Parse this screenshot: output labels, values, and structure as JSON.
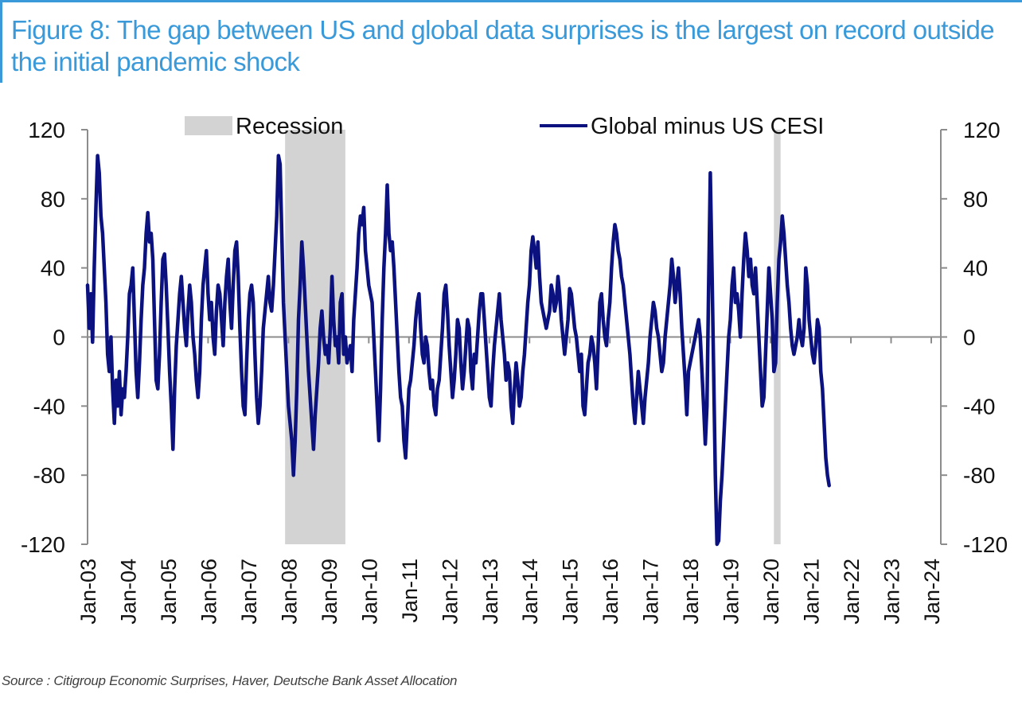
{
  "figure": {
    "title": "Figure 8: The gap between US and global data surprises is the largest on record outside the initial pandemic shock",
    "source": "Source : Citigroup Economic Surprises, Haver, Deutsche Bank Asset Allocation"
  },
  "colors": {
    "title": "#3a9ad9",
    "series": "#0b1280",
    "recession": "#d3d3d3",
    "axis": "#8c8c8c"
  },
  "chart_data": {
    "type": "line",
    "title": "Figure 8: The gap between US and global data surprises is the largest on record outside the initial pandemic shock",
    "xlabel": "",
    "ylabel": "",
    "ylim": [
      -120,
      120
    ],
    "yticks": [
      -120,
      -80,
      -40,
      0,
      40,
      80,
      120
    ],
    "ytick_labels": [
      "-120",
      "-80",
      "-40",
      "0",
      "40",
      "80",
      "120"
    ],
    "y2ticks": [
      -120,
      -80,
      -40,
      0,
      40,
      80,
      120
    ],
    "y2tick_labels": [
      "-120",
      "-80",
      "-40",
      "0",
      "40",
      "80",
      "120"
    ],
    "xlim": [
      "2003-01",
      "2024-01"
    ],
    "xtick_labels": [
      "Jan-03",
      "Jan-04",
      "Jan-05",
      "Jan-06",
      "Jan-07",
      "Jan-08",
      "Jan-09",
      "Jan-10",
      "Jan-11",
      "Jan-12",
      "Jan-13",
      "Jan-14",
      "Jan-15",
      "Jan-16",
      "Jan-17",
      "Jan-18",
      "Jan-19",
      "Jan-20",
      "Jan-21",
      "Jan-22",
      "Jan-23",
      "Jan-24"
    ],
    "grid": false,
    "legend": {
      "placement": "top",
      "entries": [
        {
          "name": "Recession",
          "kind": "area"
        },
        {
          "name": "Global minus US CESI",
          "kind": "line"
        }
      ]
    },
    "recessions": [
      {
        "start": "2007-12",
        "end": "2009-06"
      },
      {
        "start": "2020-02",
        "end": "2020-04"
      }
    ],
    "series": [
      {
        "name": "Global minus US CESI",
        "start": "2003-01",
        "frequency": "half-month",
        "values": [
          30,
          5,
          25,
          -3,
          40,
          75,
          105,
          95,
          70,
          60,
          40,
          20,
          -10,
          -20,
          0,
          -30,
          -50,
          -25,
          -40,
          -20,
          -45,
          -30,
          -35,
          -20,
          0,
          25,
          30,
          40,
          10,
          -20,
          -35,
          -15,
          10,
          30,
          40,
          60,
          72,
          55,
          60,
          45,
          10,
          -25,
          -30,
          -10,
          20,
          45,
          48,
          30,
          5,
          -20,
          -40,
          -65,
          -30,
          -5,
          10,
          25,
          35,
          20,
          5,
          -5,
          15,
          30,
          20,
          0,
          -10,
          -25,
          -35,
          -20,
          10,
          30,
          40,
          50,
          25,
          10,
          20,
          0,
          -10,
          15,
          30,
          25,
          10,
          -5,
          20,
          35,
          45,
          20,
          5,
          30,
          50,
          55,
          35,
          5,
          -20,
          -40,
          -45,
          -15,
          10,
          25,
          30,
          20,
          -10,
          -35,
          -50,
          -40,
          -20,
          5,
          15,
          25,
          35,
          20,
          15,
          30,
          50,
          70,
          105,
          100,
          60,
          20,
          0,
          -20,
          -40,
          -50,
          -60,
          -80,
          -60,
          -30,
          10,
          30,
          55,
          40,
          20,
          0,
          -20,
          -35,
          -50,
          -65,
          -45,
          -30,
          -15,
          5,
          15,
          0,
          -10,
          -5,
          -15,
          5,
          35,
          10,
          -5,
          0,
          -15,
          20,
          25,
          -10,
          0,
          -15,
          -10,
          -5,
          -20,
          10,
          25,
          40,
          60,
          70,
          65,
          75,
          50,
          40,
          30,
          25,
          20,
          0,
          -20,
          -40,
          -60,
          -30,
          10,
          40,
          60,
          88,
          60,
          50,
          55,
          40,
          20,
          0,
          -20,
          -35,
          -40,
          -60,
          -70,
          -50,
          -30,
          -25,
          -15,
          -5,
          10,
          20,
          25,
          5,
          -10,
          -15,
          0,
          -5,
          -20,
          -30,
          -25,
          -40,
          -45,
          -30,
          -25,
          -10,
          5,
          25,
          30,
          15,
          -5,
          -20,
          -35,
          -25,
          -10,
          10,
          5,
          -15,
          -30,
          -20,
          -5,
          10,
          5,
          -20,
          -30,
          -10,
          -15,
          0,
          15,
          25,
          25,
          10,
          -5,
          -20,
          -35,
          -40,
          -20,
          -5,
          5,
          15,
          25,
          10,
          0,
          -10,
          -25,
          -15,
          -20,
          -40,
          -50,
          -30,
          -15,
          -25,
          -40,
          -35,
          -20,
          -10,
          5,
          20,
          30,
          50,
          58,
          50,
          40,
          55,
          35,
          20,
          15,
          10,
          5,
          10,
          15,
          30,
          25,
          15,
          20,
          35,
          25,
          10,
          0,
          -10,
          0,
          10,
          28,
          25,
          15,
          5,
          0,
          -10,
          -20,
          -10,
          -40,
          -45,
          -30,
          -15,
          -10,
          0,
          -5,
          -15,
          -30,
          -5,
          20,
          25,
          10,
          0,
          -5,
          10,
          20,
          40,
          55,
          65,
          60,
          50,
          45,
          35,
          30,
          20,
          10,
          0,
          -10,
          -25,
          -40,
          -50,
          -35,
          -20,
          -30,
          -40,
          -50,
          -35,
          -25,
          -15,
          0,
          10,
          20,
          15,
          5,
          0,
          -10,
          -20,
          -15,
          0,
          10,
          20,
          30,
          45,
          35,
          20,
          30,
          40,
          25,
          5,
          -10,
          -25,
          -45,
          -20,
          -15,
          -10,
          -5,
          0,
          5,
          10,
          0,
          -20,
          -40,
          -62,
          -40,
          30,
          95,
          40,
          -20,
          -80,
          -120,
          -118,
          -95,
          -80,
          -60,
          -40,
          -20,
          0,
          10,
          30,
          40,
          20,
          25,
          15,
          0,
          25,
          45,
          60,
          50,
          35,
          45,
          30,
          25,
          40,
          20,
          0,
          -20,
          -40,
          -35,
          -10,
          15,
          40,
          25,
          10,
          -20,
          -15,
          20,
          45,
          55,
          70,
          60,
          45,
          30,
          20,
          5,
          -5,
          -10,
          -5,
          0,
          10,
          0,
          -5,
          5,
          40,
          30,
          10,
          0,
          -10,
          -15,
          -5,
          10,
          5,
          -20,
          -30,
          -50,
          -70,
          -80,
          -86
        ]
      }
    ]
  }
}
